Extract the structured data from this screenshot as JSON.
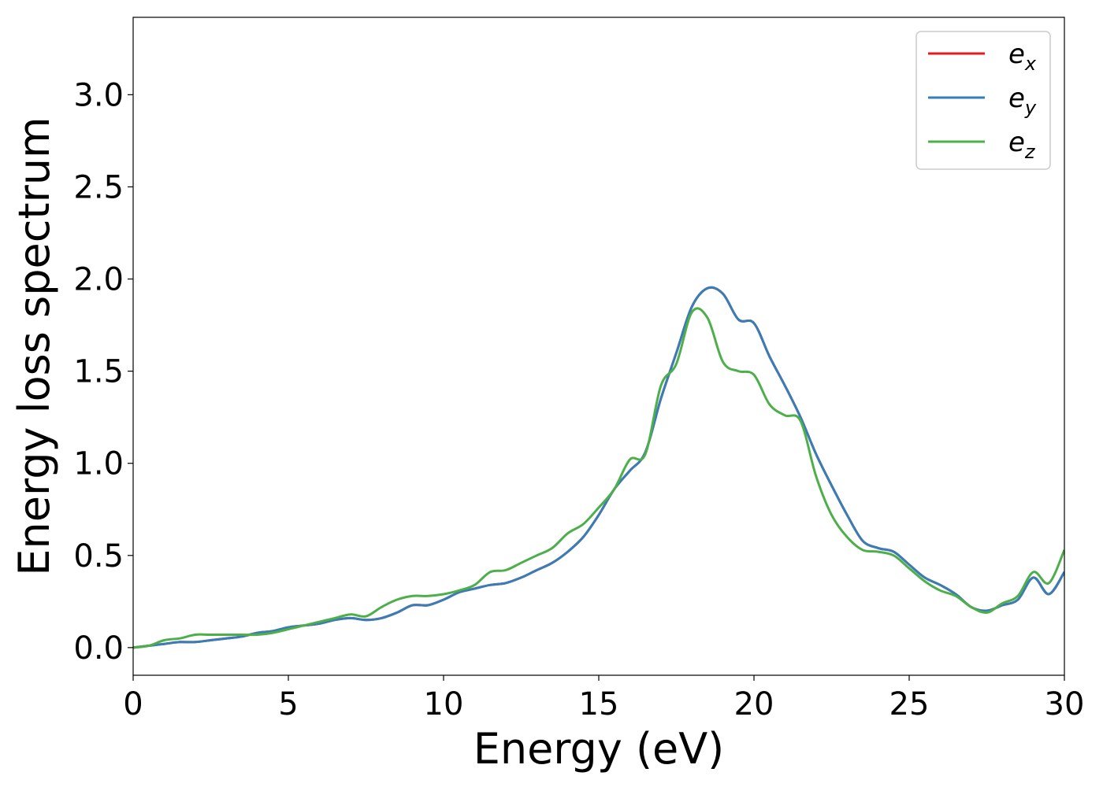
{
  "chart_data": {
    "type": "line",
    "title": "",
    "xlabel": "Energy (eV)",
    "ylabel": "Energy loss spectrum",
    "xlim": [
      0,
      30
    ],
    "ylim": [
      -0.15,
      3.42
    ],
    "xticks": [
      0,
      5,
      10,
      15,
      20,
      25,
      30
    ],
    "xtick_labels": [
      "0",
      "5",
      "10",
      "15",
      "20",
      "25",
      "30"
    ],
    "yticks": [
      0.0,
      0.5,
      1.0,
      1.5,
      2.0,
      2.5,
      3.0
    ],
    "ytick_labels": [
      "0.0",
      "0.5",
      "1.0",
      "1.5",
      "2.0",
      "2.5",
      "3.0"
    ],
    "grid": false,
    "legend_position": "top-right",
    "series": [
      {
        "name": "e_x",
        "label_base": "e",
        "label_sub": "x",
        "color": "#e41a1c",
        "x": [
          0,
          0.5,
          1,
          1.5,
          2,
          2.5,
          3,
          3.5,
          4,
          4.5,
          5,
          5.5,
          6,
          6.5,
          7,
          7.5,
          8,
          8.5,
          9,
          9.5,
          10,
          10.5,
          11,
          11.5,
          12,
          12.5,
          13,
          13.5,
          14,
          14.5,
          15,
          15.5,
          16,
          16.5,
          17,
          17.5,
          18,
          18.5,
          19,
          19.5,
          20,
          20.5,
          21,
          21.5,
          22,
          22.5,
          23,
          23.5,
          24,
          24.5,
          25,
          25.5,
          26,
          26.5,
          27,
          27.5,
          28,
          28.5,
          29,
          29.5,
          30
        ],
        "y": [
          0.0,
          0.01,
          0.02,
          0.03,
          0.03,
          0.04,
          0.05,
          0.06,
          0.08,
          0.09,
          0.11,
          0.12,
          0.13,
          0.15,
          0.16,
          0.15,
          0.16,
          0.19,
          0.23,
          0.23,
          0.26,
          0.3,
          0.32,
          0.34,
          0.35,
          0.38,
          0.42,
          0.46,
          0.52,
          0.6,
          0.72,
          0.86,
          0.96,
          1.06,
          1.35,
          1.6,
          1.85,
          1.95,
          1.92,
          1.78,
          1.76,
          1.58,
          1.42,
          1.25,
          1.05,
          0.88,
          0.72,
          0.58,
          0.54,
          0.52,
          0.45,
          0.38,
          0.34,
          0.29,
          0.22,
          0.2,
          0.23,
          0.26,
          0.38,
          0.29,
          0.41
        ]
      },
      {
        "name": "e_y",
        "label_base": "e",
        "label_sub": "y",
        "color": "#377eb8",
        "x": [
          0,
          0.5,
          1,
          1.5,
          2,
          2.5,
          3,
          3.5,
          4,
          4.5,
          5,
          5.5,
          6,
          6.5,
          7,
          7.5,
          8,
          8.5,
          9,
          9.5,
          10,
          10.5,
          11,
          11.5,
          12,
          12.5,
          13,
          13.5,
          14,
          14.5,
          15,
          15.5,
          16,
          16.5,
          17,
          17.5,
          18,
          18.5,
          19,
          19.5,
          20,
          20.5,
          21,
          21.5,
          22,
          22.5,
          23,
          23.5,
          24,
          24.5,
          25,
          25.5,
          26,
          26.5,
          27,
          27.5,
          28,
          28.5,
          29,
          29.5,
          30
        ],
        "y": [
          0.0,
          0.01,
          0.02,
          0.03,
          0.03,
          0.04,
          0.05,
          0.06,
          0.08,
          0.09,
          0.11,
          0.12,
          0.13,
          0.15,
          0.16,
          0.15,
          0.16,
          0.19,
          0.23,
          0.23,
          0.26,
          0.3,
          0.32,
          0.34,
          0.35,
          0.38,
          0.42,
          0.46,
          0.52,
          0.6,
          0.72,
          0.86,
          0.96,
          1.06,
          1.35,
          1.6,
          1.85,
          1.95,
          1.92,
          1.78,
          1.76,
          1.58,
          1.42,
          1.25,
          1.05,
          0.88,
          0.72,
          0.58,
          0.54,
          0.52,
          0.45,
          0.38,
          0.34,
          0.29,
          0.22,
          0.2,
          0.23,
          0.26,
          0.38,
          0.29,
          0.41
        ]
      },
      {
        "name": "e_z",
        "label_base": "e",
        "label_sub": "z",
        "color": "#4daf4a",
        "x": [
          0,
          0.5,
          1,
          1.5,
          2,
          2.5,
          3,
          3.5,
          4,
          4.5,
          5,
          5.5,
          6,
          6.5,
          7,
          7.5,
          8,
          8.5,
          9,
          9.5,
          10,
          10.5,
          11,
          11.5,
          12,
          12.5,
          13,
          13.5,
          14,
          14.5,
          15,
          15.5,
          16,
          16.5,
          17,
          17.5,
          18,
          18.5,
          19,
          19.5,
          20,
          20.5,
          21,
          21.5,
          22,
          22.5,
          23,
          23.5,
          24,
          24.5,
          25,
          25.5,
          26,
          26.5,
          27,
          27.5,
          28,
          28.5,
          29,
          29.5,
          30
        ],
        "y": [
          0.0,
          0.01,
          0.04,
          0.05,
          0.07,
          0.07,
          0.07,
          0.07,
          0.07,
          0.08,
          0.1,
          0.12,
          0.14,
          0.16,
          0.18,
          0.17,
          0.22,
          0.26,
          0.28,
          0.28,
          0.29,
          0.31,
          0.34,
          0.41,
          0.42,
          0.46,
          0.5,
          0.54,
          0.62,
          0.67,
          0.76,
          0.86,
          1.02,
          1.05,
          1.42,
          1.54,
          1.82,
          1.79,
          1.55,
          1.5,
          1.48,
          1.32,
          1.26,
          1.23,
          0.93,
          0.72,
          0.6,
          0.53,
          0.52,
          0.5,
          0.43,
          0.36,
          0.31,
          0.28,
          0.22,
          0.19,
          0.24,
          0.28,
          0.41,
          0.35,
          0.53
        ]
      }
    ]
  }
}
